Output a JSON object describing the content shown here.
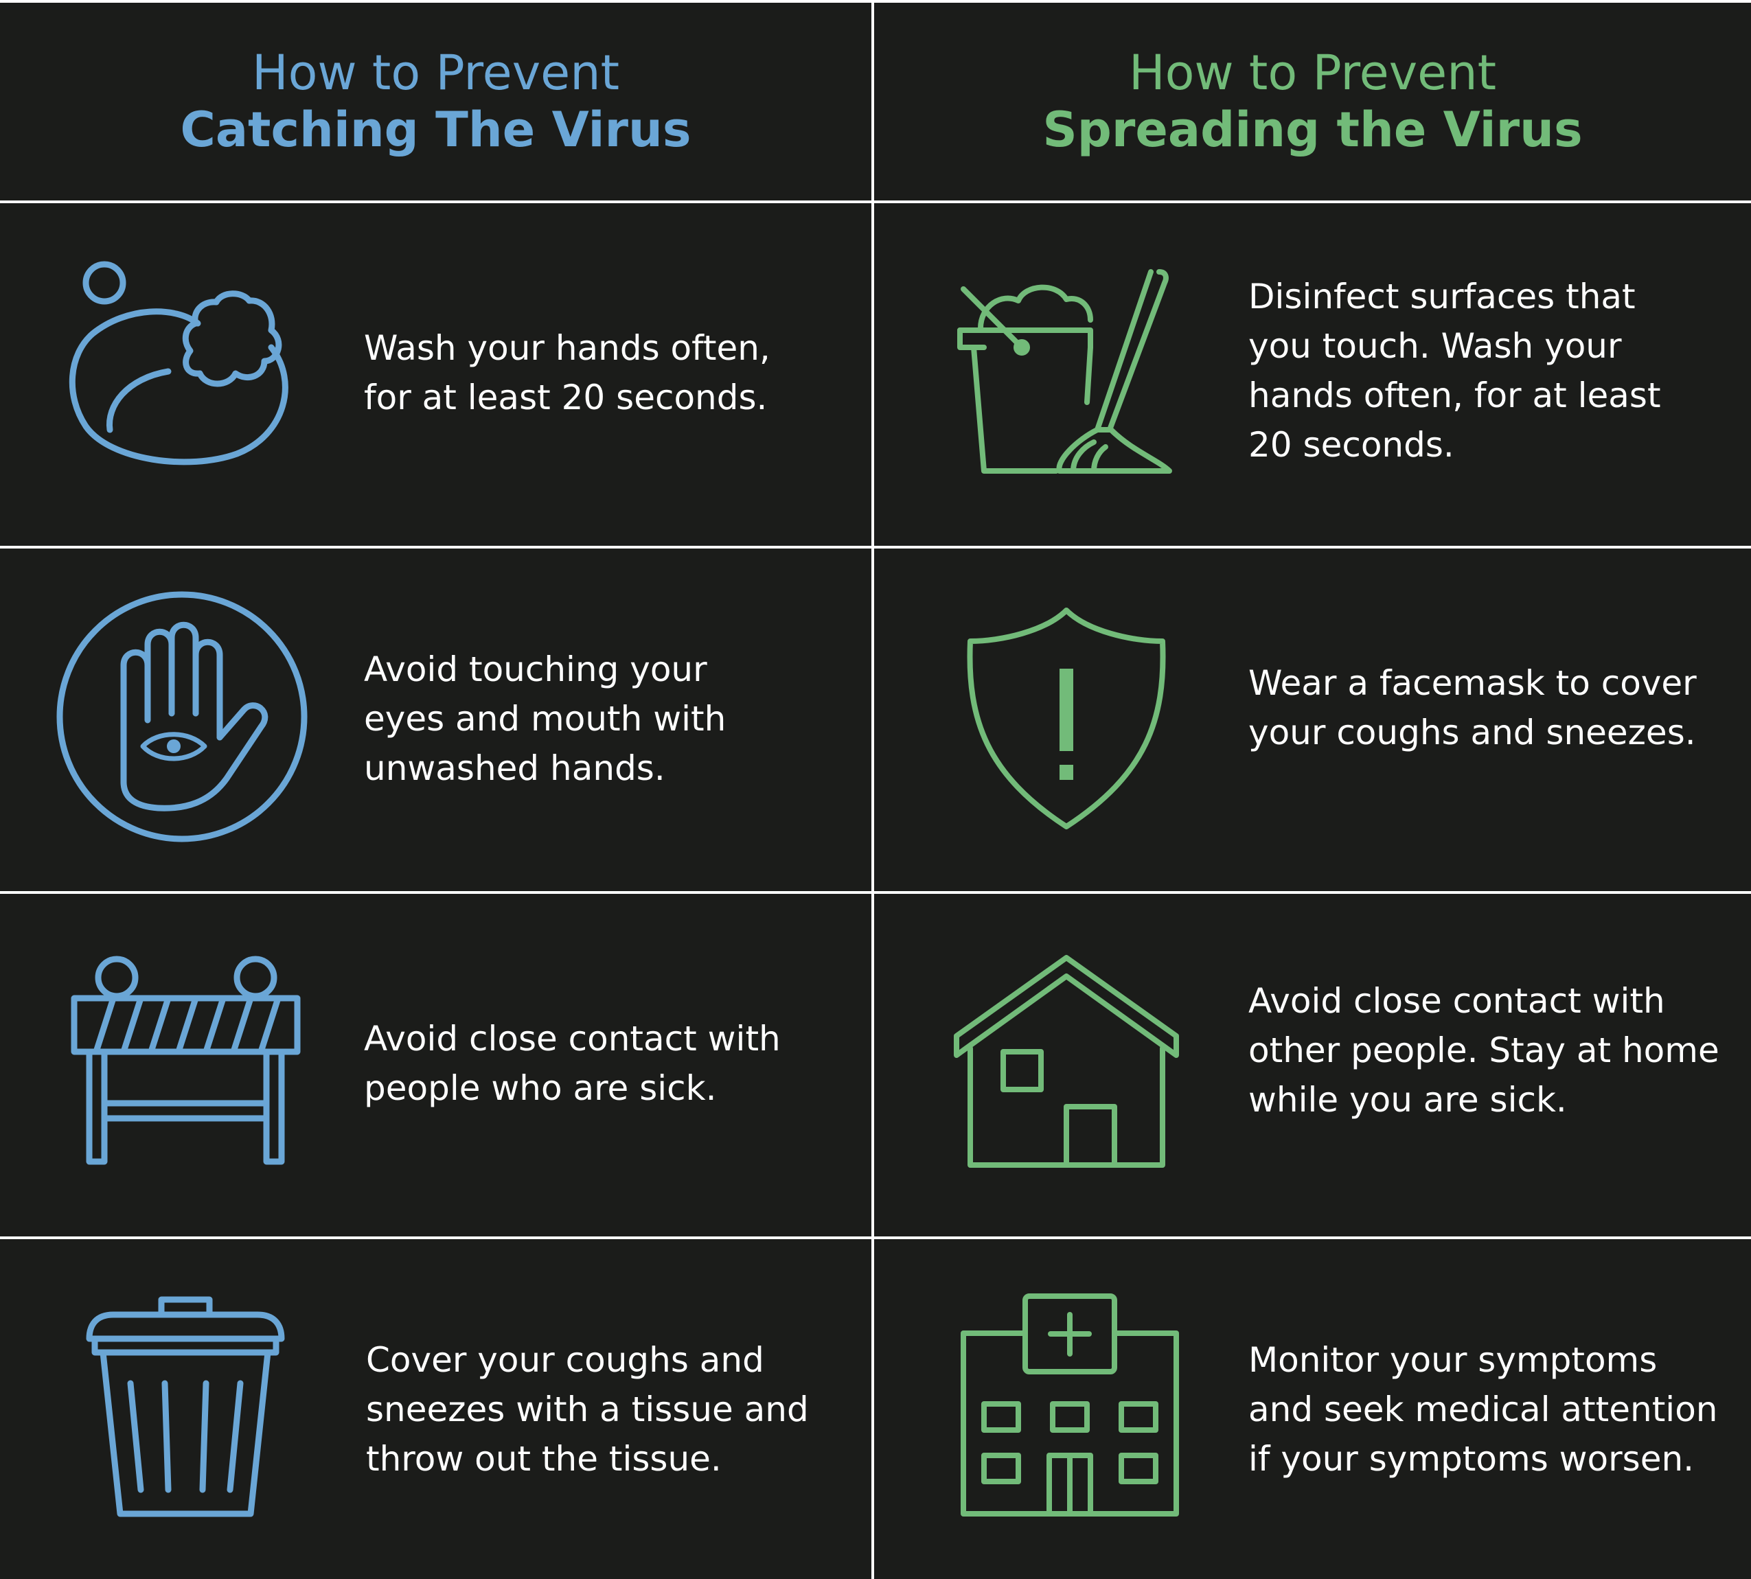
{
  "catching": {
    "heading_line1": "How to Prevent",
    "heading_line2": "Catching The Virus",
    "color": "#6aa6d6",
    "tips": [
      {
        "icon": "soap-icon",
        "text": "Wash your hands often,\nfor at least 20 seconds."
      },
      {
        "icon": "raised-hand-eye-icon",
        "text": "Avoid touching your\neyes and mouth with\nunwashed hands."
      },
      {
        "icon": "barrier-icon",
        "text": "Avoid close contact with\npeople who are sick."
      },
      {
        "icon": "trash-can-icon",
        "text": "Cover your coughs and\nsneezes with a tissue and\nthrow out the tissue."
      }
    ]
  },
  "spreading": {
    "heading_line1": "How to Prevent",
    "heading_line2": "Spreading the Virus",
    "color": "#72bb79",
    "tips": [
      {
        "icon": "bucket-mop-icon",
        "text": "Disinfect surfaces that\nyou touch. Wash your\nhands often, for at least\n20 seconds."
      },
      {
        "icon": "shield-alert-icon",
        "text": "Wear a facemask to cover\nyour coughs and sneezes."
      },
      {
        "icon": "house-icon",
        "text": "Avoid close contact with\nother people. Stay at home\nwhile you are sick."
      },
      {
        "icon": "hospital-icon",
        "text": "Monitor your symptoms\nand seek medical attention\nif your symptoms worsen."
      }
    ]
  }
}
